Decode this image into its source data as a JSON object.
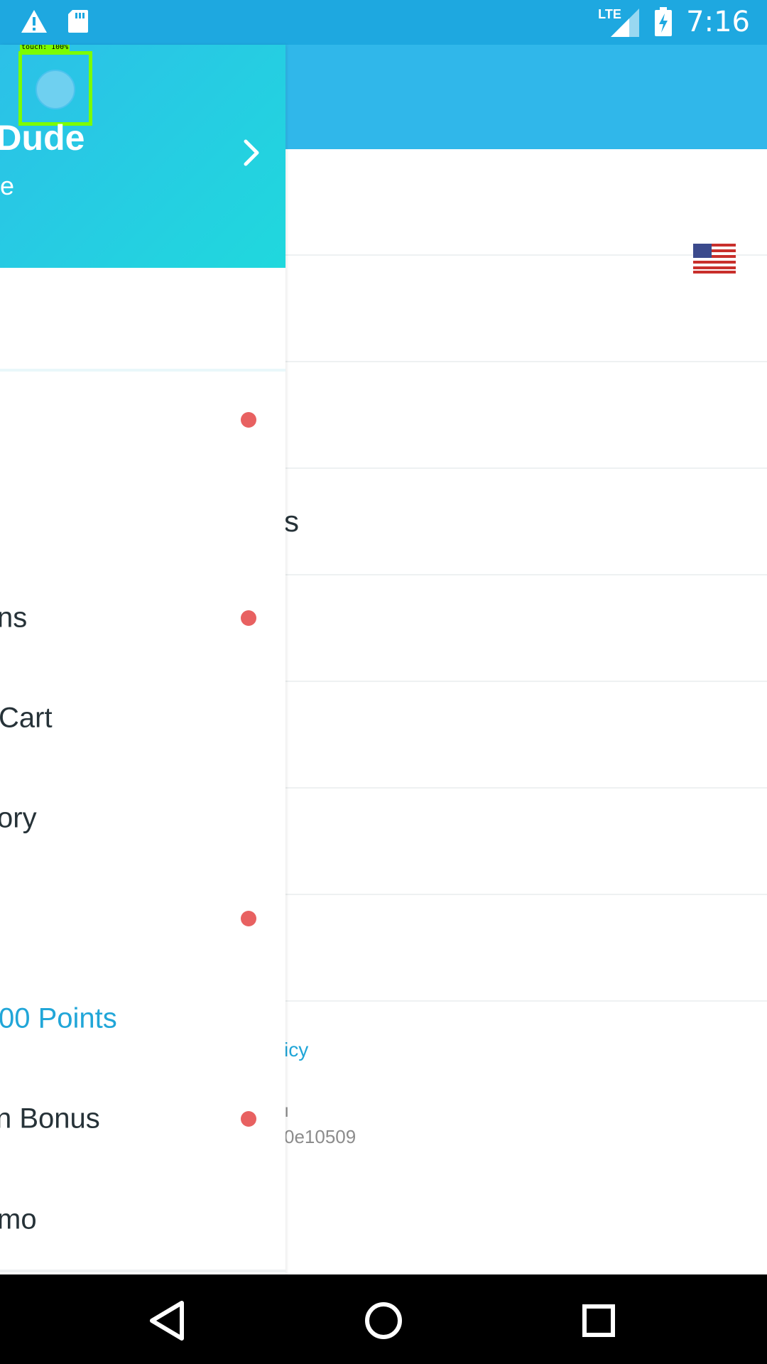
{
  "status_bar": {
    "time": "7:16",
    "network_label": "LTE",
    "icons": [
      "warning-icon",
      "sd-card-icon",
      "lte-signal-icon",
      "battery-charging-icon"
    ]
  },
  "background": {
    "rows": [
      {
        "text": ""
      },
      {
        "text": ""
      },
      {
        "text": ""
      },
      {
        "text": "s"
      },
      {
        "text": ""
      },
      {
        "text": ""
      },
      {
        "text": ""
      },
      {
        "text": ""
      }
    ],
    "flag_icon": "us-flag-icon",
    "footer_link": "icy",
    "footer_line1": "ı",
    "footer_line2": "0e10509"
  },
  "drawer": {
    "user_name": "o Dude",
    "profile_link": "Profile",
    "touch_label": "touch: 100%",
    "items": [
      {
        "label": "",
        "dot": true
      },
      {
        "label": "ns",
        "dot": true
      },
      {
        "label": "Cart",
        "dot": false
      },
      {
        "label": "ory",
        "dot": false
      },
      {
        "label": "",
        "dot": true
      },
      {
        "label": "00 Points",
        "dot": false,
        "accent": true
      },
      {
        "label": "n Bonus",
        "dot": true
      },
      {
        "label": "mo",
        "dot": false
      }
    ]
  },
  "colors": {
    "status_bar": "#1ea8e0",
    "header_bg": "#30b7ea",
    "drawer_gradient_start": "#2cc0e8",
    "drawer_gradient_end": "#20d8dd",
    "accent": "#21a6d8",
    "notification_dot": "#e86161"
  },
  "nav_bar": {
    "buttons": [
      "back-icon",
      "home-icon",
      "recents-icon"
    ]
  }
}
